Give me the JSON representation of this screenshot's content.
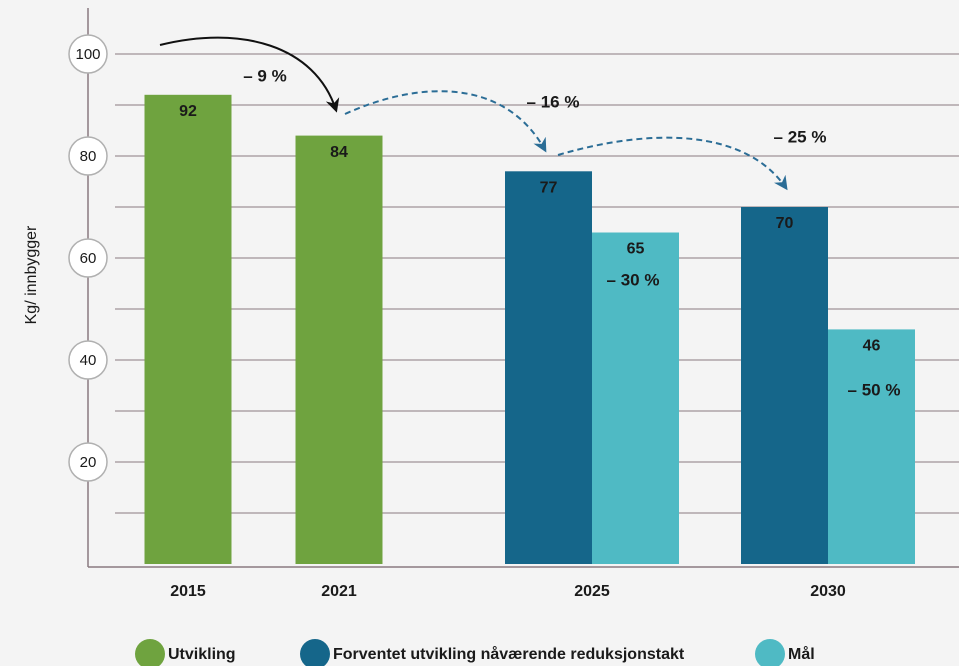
{
  "chart_data": {
    "type": "bar",
    "y_label": "Kg/ innbygger",
    "categories": [
      "2015",
      "2021",
      "2025",
      "2030"
    ],
    "series": [
      {
        "name": "Utvikling",
        "color": "#6fa33f",
        "values": [
          92,
          84,
          null,
          null
        ]
      },
      {
        "name": "Forventet utvikling nåværende reduksjonstakt",
        "color": "#15668a",
        "values": [
          null,
          null,
          77,
          70
        ]
      },
      {
        "name": "Mål",
        "color": "#4fbac4",
        "values": [
          null,
          null,
          65,
          46
        ]
      }
    ],
    "ylim": [
      0,
      100
    ],
    "yticks": [
      20,
      40,
      60,
      80,
      100
    ],
    "minor_yticks": [
      10,
      30,
      50,
      70,
      90
    ],
    "grid": true,
    "annotations": [
      "– 9 %",
      "– 16 %",
      "– 25 %",
      "– 30 %",
      "– 50 %"
    ],
    "legend": "bottom"
  }
}
